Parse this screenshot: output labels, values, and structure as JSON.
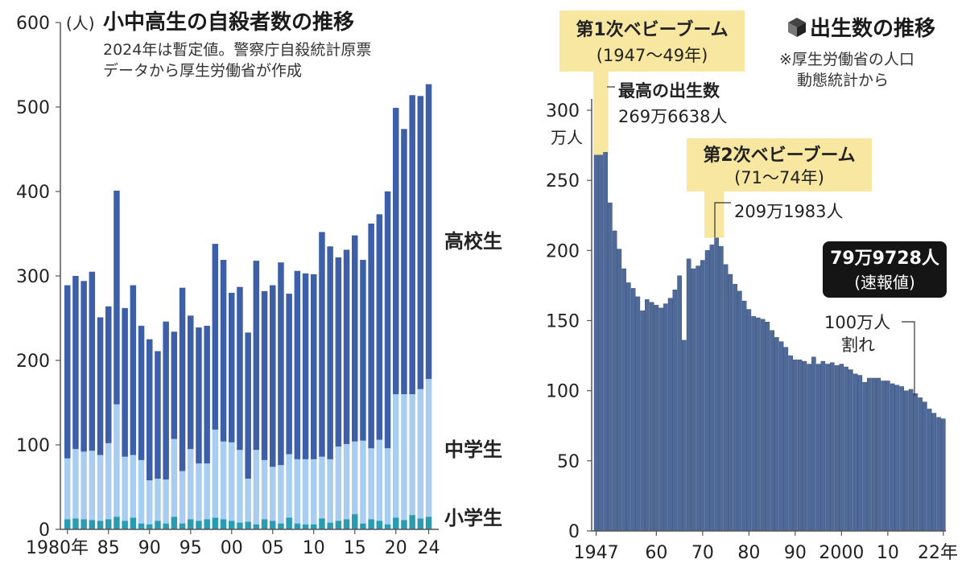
{
  "left_chart": {
    "title": "小中高生の自殺者数の推移",
    "unit_label": "(人)",
    "notes": [
      "2024年は暫定値。警察庁自殺統計原票",
      "データから厚生労働省が作成"
    ],
    "series_labels": {
      "high": "高校生",
      "middle": "中学生",
      "elementary": "小学生"
    },
    "colors": {
      "high": "#3d5fa8",
      "middle": "#a9cdef",
      "elementary": "#2a9cb1"
    },
    "yticks": [
      "0",
      "100",
      "200",
      "300",
      "400",
      "500",
      "600"
    ],
    "xtick_labels": [
      {
        "year": 1980,
        "label": "1980年"
      },
      {
        "year": 1985,
        "label": "85"
      },
      {
        "year": 1990,
        "label": "90"
      },
      {
        "year": 1995,
        "label": "95"
      },
      {
        "year": 2000,
        "label": "00"
      },
      {
        "year": 2005,
        "label": "05"
      },
      {
        "year": 2010,
        "label": "10"
      },
      {
        "year": 2015,
        "label": "15"
      },
      {
        "year": 2020,
        "label": "20"
      },
      {
        "year": 2024,
        "label": "24"
      }
    ]
  },
  "right_chart": {
    "title": "出生数の推移",
    "notes": [
      "※厚生労働省の人口",
      "動態統計から"
    ],
    "unit_label": "万人",
    "yticks": [
      "0",
      "50",
      "100",
      "150",
      "200",
      "250",
      "300"
    ],
    "xtick_labels": [
      {
        "year": 1947,
        "label": "1947"
      },
      {
        "year": 1960,
        "label": "60"
      },
      {
        "year": 1970,
        "label": "70"
      },
      {
        "year": 1980,
        "label": "80"
      },
      {
        "year": 1990,
        "label": "90"
      },
      {
        "year": 2000,
        "label": "2000"
      },
      {
        "year": 2010,
        "label": "10"
      },
      {
        "year": 2022,
        "label": "22年"
      }
    ],
    "bar_color": "#4f6a99",
    "boom1": {
      "title": "第1次ベビーブーム",
      "years": "(1947〜49年)"
    },
    "boom2": {
      "title": "第2次ベビーブーム",
      "years": "(71〜74年)"
    },
    "peak_label": "最高の出生数",
    "peak_value": "269万6638人",
    "boom2_value": "209万1983人",
    "latest_value": "79万9728人",
    "latest_note": "(速報値)",
    "under_million_1": "100万人",
    "under_million_2": "割れ",
    "highlight_color": "#f7e7a0"
  },
  "chart_data": [
    {
      "type": "bar",
      "stacked": true,
      "title": "小中高生の自殺者数の推移",
      "ylabel": "(人)",
      "ylim": [
        0,
        600
      ],
      "x": [
        1980,
        1981,
        1982,
        1983,
        1984,
        1985,
        1986,
        1987,
        1988,
        1989,
        1990,
        1991,
        1992,
        1993,
        1994,
        1995,
        1996,
        1997,
        1998,
        1999,
        2000,
        2001,
        2002,
        2003,
        2004,
        2005,
        2006,
        2007,
        2008,
        2009,
        2010,
        2011,
        2012,
        2013,
        2014,
        2015,
        2016,
        2017,
        2018,
        2019,
        2020,
        2021,
        2022,
        2023,
        2024
      ],
      "series": [
        {
          "name": "小学生",
          "values": [
            12,
            13,
            12,
            11,
            10,
            12,
            15,
            10,
            14,
            7,
            6,
            10,
            7,
            15,
            7,
            12,
            10,
            12,
            14,
            12,
            10,
            8,
            9,
            6,
            12,
            10,
            7,
            14,
            7,
            6,
            6,
            13,
            8,
            10,
            12,
            18,
            7,
            12,
            10,
            6,
            14,
            11,
            17,
            13,
            15
          ]
        },
        {
          "name": "中学生",
          "values": [
            72,
            82,
            80,
            82,
            78,
            90,
            133,
            76,
            74,
            75,
            52,
            50,
            52,
            92,
            62,
            83,
            68,
            66,
            104,
            92,
            93,
            86,
            51,
            88,
            70,
            64,
            69,
            75,
            76,
            77,
            77,
            73,
            75,
            88,
            89,
            86,
            98,
            84,
            96,
            90,
            146,
            149,
            143,
            153,
            163
          ]
        },
        {
          "name": "高校生",
          "values": [
            205,
            205,
            202,
            212,
            163,
            162,
            253,
            176,
            201,
            159,
            167,
            151,
            187,
            127,
            217,
            158,
            161,
            163,
            220,
            215,
            177,
            193,
            173,
            224,
            200,
            215,
            240,
            190,
            223,
            220,
            219,
            266,
            252,
            224,
            230,
            244,
            214,
            266,
            267,
            304,
            339,
            314,
            354,
            347,
            349
          ]
        }
      ]
    },
    {
      "type": "bar",
      "title": "出生数の推移",
      "ylabel": "万人",
      "ylim": [
        0,
        300
      ],
      "x": [
        1947,
        1948,
        1949,
        1950,
        1951,
        1952,
        1953,
        1954,
        1955,
        1956,
        1957,
        1958,
        1959,
        1960,
        1961,
        1962,
        1963,
        1964,
        1965,
        1966,
        1967,
        1968,
        1969,
        1970,
        1971,
        1972,
        1973,
        1974,
        1975,
        1976,
        1977,
        1978,
        1979,
        1980,
        1981,
        1982,
        1983,
        1984,
        1985,
        1986,
        1987,
        1988,
        1989,
        1990,
        1991,
        1992,
        1993,
        1994,
        1995,
        1996,
        1997,
        1998,
        1999,
        2000,
        2001,
        2002,
        2003,
        2004,
        2005,
        2006,
        2007,
        2008,
        2009,
        2010,
        2011,
        2012,
        2013,
        2014,
        2015,
        2016,
        2017,
        2018,
        2019,
        2020,
        2021,
        2022
      ],
      "series": [
        {
          "name": "出生数",
          "values": [
            268,
            268,
            270,
            234,
            214,
            201,
            187,
            177,
            173,
            167,
            157,
            165,
            163,
            161,
            159,
            162,
            166,
            172,
            182,
            136,
            194,
            187,
            189,
            193,
            200,
            204,
            209,
            203,
            190,
            183,
            176,
            171,
            164,
            158,
            153,
            152,
            151,
            149,
            143,
            138,
            135,
            131,
            125,
            122,
            122,
            121,
            119,
            124,
            119,
            121,
            119,
            120,
            118,
            119,
            117,
            115,
            112,
            111,
            106,
            109,
            109,
            109,
            107,
            107,
            105,
            104,
            103,
            100,
            101,
            98,
            95,
            92,
            87,
            84,
            81,
            80
          ]
        }
      ]
    }
  ]
}
